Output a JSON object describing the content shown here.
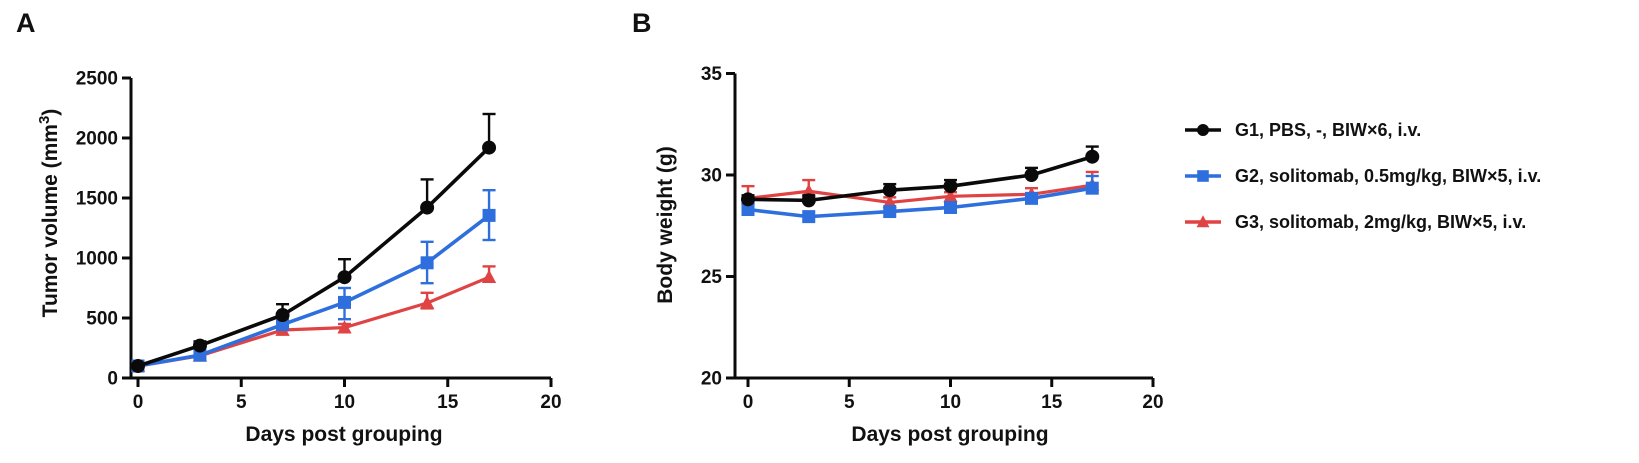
{
  "figure": {
    "panels": [
      {
        "label": "A"
      },
      {
        "label": "B"
      }
    ]
  },
  "legend": {
    "items": [
      {
        "label": "G1, PBS, -, BIW×6, i.v.",
        "color": "#0a0a0a",
        "marker": "circle"
      },
      {
        "label": "G2, solitomab, 0.5mg/kg, BIW×5, i.v.",
        "color": "#2e6fdd",
        "marker": "square"
      },
      {
        "label": "G3, solitomab, 2mg/kg, BIW×5, i.v.",
        "color": "#e04343",
        "marker": "triangle"
      }
    ]
  },
  "chart_data": [
    {
      "type": "line",
      "panel": "A",
      "title": "",
      "xlabel": "Days post grouping",
      "ylabel": "Tumor volume (mm³)",
      "x": [
        0,
        3,
        7,
        10,
        14,
        17
      ],
      "xlim": [
        0,
        20
      ],
      "xticks": [
        0,
        5,
        10,
        15,
        20
      ],
      "ylim": [
        0,
        2500
      ],
      "yticks": [
        0,
        500,
        1000,
        1500,
        2000,
        2500
      ],
      "grid": false,
      "legend_position": "right-of-panel-B",
      "series": [
        {
          "name": "G1, PBS, -, BIW×6, i.v.",
          "marker": "circle",
          "color": "#0a0a0a",
          "values": [
            100,
            270,
            525,
            840,
            1420,
            1920
          ],
          "err_up": [
            0,
            35,
            90,
            150,
            235,
            280
          ],
          "err_down": [
            0,
            0,
            0,
            0,
            0,
            0
          ]
        },
        {
          "name": "G2, solitomab, 0.5mg/kg, BIW×5, i.v.",
          "marker": "square",
          "color": "#2e6fdd",
          "values": [
            100,
            190,
            445,
            630,
            960,
            1355
          ],
          "err_up": [
            0,
            0,
            30,
            120,
            175,
            210
          ],
          "err_down": [
            0,
            0,
            0,
            140,
            170,
            205
          ]
        },
        {
          "name": "G3, solitomab, 2mg/kg, BIW×5, i.v.",
          "marker": "triangle",
          "color": "#e04343",
          "values": [
            100,
            185,
            400,
            420,
            625,
            840
          ],
          "err_up": [
            0,
            0,
            0,
            30,
            85,
            90
          ],
          "err_down": [
            0,
            0,
            0,
            0,
            45,
            0
          ]
        }
      ]
    },
    {
      "type": "line",
      "panel": "B",
      "title": "",
      "xlabel": "Days post grouping",
      "ylabel": "Body weight (g)",
      "x": [
        0,
        3,
        7,
        10,
        14,
        17
      ],
      "xlim": [
        0,
        20
      ],
      "xticks": [
        0,
        5,
        10,
        15,
        20
      ],
      "ylim": [
        20,
        35
      ],
      "yticks": [
        20,
        25,
        30,
        35
      ],
      "grid": false,
      "series": [
        {
          "name": "G1, PBS, -, BIW×6, i.v.",
          "marker": "circle",
          "color": "#0a0a0a",
          "values": [
            28.8,
            28.75,
            29.25,
            29.45,
            30.0,
            30.9
          ],
          "err_up": [
            0.2,
            0.25,
            0.3,
            0.3,
            0.35,
            0.5
          ],
          "err_down": [
            0,
            0,
            0,
            0,
            0,
            0
          ]
        },
        {
          "name": "G2, solitomab, 0.5mg/kg, BIW×5, i.v.",
          "marker": "square",
          "color": "#2e6fdd",
          "values": [
            28.3,
            27.95,
            28.2,
            28.4,
            28.85,
            29.35
          ],
          "err_up": [
            0.3,
            0,
            0,
            0,
            0.25,
            0.6
          ],
          "err_down": [
            0.25,
            0,
            0,
            0,
            0,
            0
          ]
        },
        {
          "name": "G3, solitomab, 2mg/kg, BIW×5, i.v.",
          "marker": "triangle",
          "color": "#e04343",
          "values": [
            28.85,
            29.2,
            28.65,
            28.95,
            29.05,
            29.5
          ],
          "err_up": [
            0.6,
            0.55,
            0.25,
            0.2,
            0.3,
            0.65
          ],
          "err_down": [
            0,
            0.3,
            0,
            0,
            0,
            0
          ]
        }
      ]
    }
  ]
}
